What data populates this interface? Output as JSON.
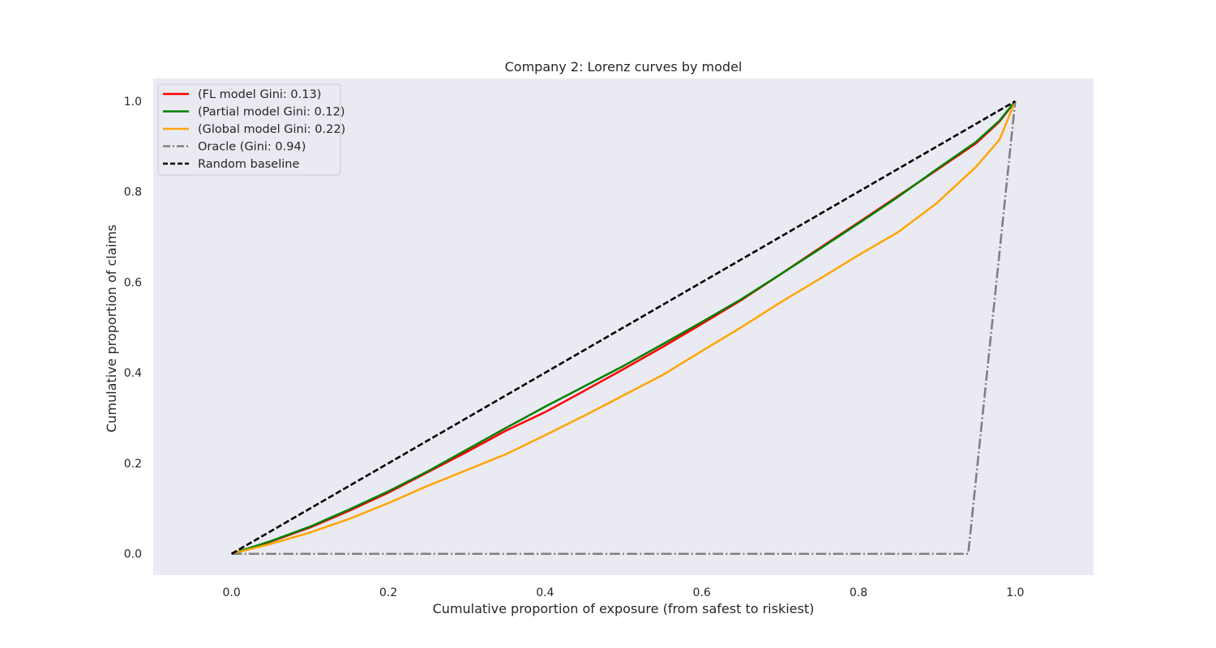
{
  "chart_data": {
    "type": "line",
    "title": "Company 2: Lorenz curves by model",
    "xlabel": "Cumulative proportion of exposure (from safest to riskiest)",
    "ylabel": "Cumulative proportion of claims",
    "xlim": [
      -0.1,
      1.1
    ],
    "ylim": [
      -0.047,
      1.05
    ],
    "xticks": [
      0.0,
      0.2,
      0.4,
      0.6,
      0.8,
      1.0
    ],
    "xtick_labels": [
      "0.0",
      "0.2",
      "0.4",
      "0.6",
      "0.8",
      "1.0"
    ],
    "yticks": [
      0.0,
      0.2,
      0.4,
      0.6,
      0.8,
      1.0
    ],
    "ytick_labels": [
      "0.0",
      "0.2",
      "0.4",
      "0.6",
      "0.8",
      "1.0"
    ],
    "grid": false,
    "background": "#eaeaf2",
    "legend_position": "upper-left",
    "series": [
      {
        "name": "(FL model Gini: 0.13)",
        "color": "#ff0000",
        "style": "solid",
        "x": [
          0.0,
          0.05,
          0.1,
          0.15,
          0.2,
          0.25,
          0.3,
          0.35,
          0.4,
          0.45,
          0.5,
          0.55,
          0.6,
          0.65,
          0.7,
          0.75,
          0.8,
          0.85,
          0.9,
          0.95,
          0.98,
          1.0
        ],
        "y": [
          0.0,
          0.027,
          0.058,
          0.095,
          0.135,
          0.18,
          0.225,
          0.272,
          0.313,
          0.36,
          0.408,
          0.457,
          0.508,
          0.56,
          0.617,
          0.675,
          0.732,
          0.79,
          0.848,
          0.907,
          0.955,
          1.0
        ]
      },
      {
        "name": "(Partial model Gini: 0.12)",
        "color": "#008000",
        "style": "solid",
        "x": [
          0.0,
          0.05,
          0.1,
          0.15,
          0.2,
          0.25,
          0.3,
          0.35,
          0.4,
          0.45,
          0.5,
          0.55,
          0.6,
          0.65,
          0.7,
          0.75,
          0.8,
          0.85,
          0.9,
          0.95,
          0.98,
          1.0
        ],
        "y": [
          0.0,
          0.028,
          0.06,
          0.098,
          0.138,
          0.182,
          0.23,
          0.278,
          0.325,
          0.37,
          0.415,
          0.463,
          0.512,
          0.562,
          0.617,
          0.673,
          0.73,
          0.788,
          0.85,
          0.91,
          0.957,
          1.0
        ]
      },
      {
        "name": "(Global model Gini: 0.22)",
        "color": "#ffa500",
        "style": "solid",
        "x": [
          0.0,
          0.05,
          0.1,
          0.15,
          0.2,
          0.25,
          0.3,
          0.35,
          0.4,
          0.45,
          0.5,
          0.55,
          0.6,
          0.65,
          0.7,
          0.75,
          0.8,
          0.85,
          0.9,
          0.95,
          0.98,
          1.0
        ],
        "y": [
          0.0,
          0.022,
          0.047,
          0.077,
          0.112,
          0.15,
          0.185,
          0.22,
          0.262,
          0.305,
          0.35,
          0.395,
          0.448,
          0.5,
          0.555,
          0.607,
          0.66,
          0.71,
          0.775,
          0.855,
          0.915,
          1.0
        ]
      },
      {
        "name": "Oracle (Gini: 0.94)",
        "color": "#808080",
        "style": "dashdot",
        "x": [
          0.0,
          0.94,
          1.0
        ],
        "y": [
          0.0,
          0.0,
          1.0
        ]
      },
      {
        "name": "Random baseline",
        "color": "#000000",
        "style": "dashed",
        "x": [
          0.0,
          1.0
        ],
        "y": [
          0.0,
          1.0
        ]
      }
    ]
  }
}
